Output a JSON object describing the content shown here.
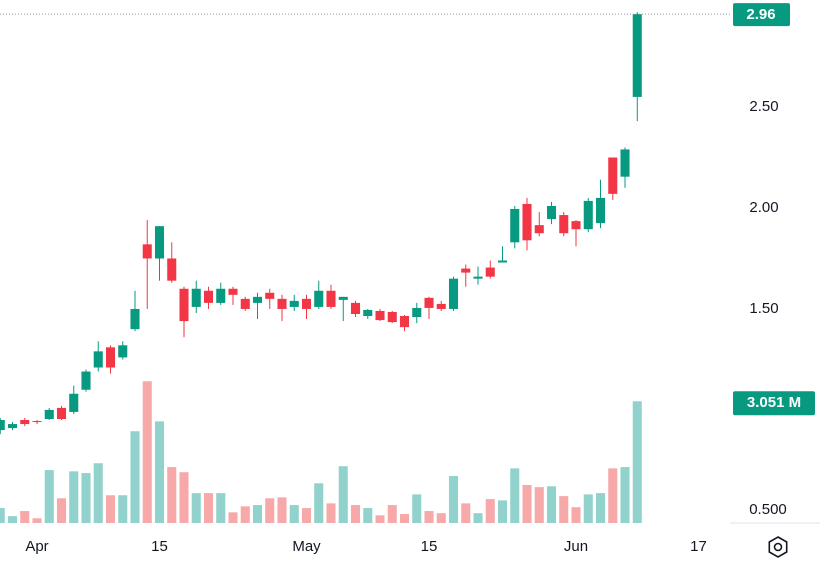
{
  "chart_data": {
    "type": "candlestick",
    "open": [
      0.9,
      0.91,
      0.95,
      0.945,
      0.955,
      1.01,
      0.99,
      1.1,
      1.21,
      1.31,
      1.26,
      1.4,
      1.82,
      1.75,
      1.75,
      1.6,
      1.51,
      1.59,
      1.53,
      1.6,
      1.55,
      1.53,
      1.58,
      1.55,
      1.51,
      1.55,
      1.51,
      1.59,
      1.545,
      1.53,
      1.465,
      1.49,
      1.485,
      1.465,
      1.46,
      1.555,
      1.525,
      1.5,
      1.7,
      1.65,
      1.705,
      1.73,
      1.83,
      2.02,
      1.915,
      1.945,
      1.965,
      1.935,
      1.895,
      1.925,
      2.25,
      2.155,
      2.55
    ],
    "high": [
      0.96,
      0.94,
      0.96,
      0.95,
      1.01,
      1.02,
      1.12,
      1.2,
      1.34,
      1.32,
      1.34,
      1.59,
      1.94,
      1.91,
      1.83,
      1.61,
      1.64,
      1.61,
      1.63,
      1.61,
      1.56,
      1.58,
      1.6,
      1.57,
      1.57,
      1.57,
      1.64,
      1.62,
      1.56,
      1.54,
      1.5,
      1.5,
      1.49,
      1.47,
      1.53,
      1.56,
      1.54,
      1.66,
      1.72,
      1.71,
      1.74,
      1.81,
      2.01,
      2.05,
      1.98,
      2.03,
      1.98,
      1.94,
      2.05,
      2.14,
      2.25,
      2.3,
      2.97
    ],
    "low": [
      0.88,
      0.9,
      0.92,
      0.93,
      0.95,
      0.95,
      0.98,
      1.09,
      1.19,
      1.18,
      1.25,
      1.39,
      1.5,
      1.64,
      1.63,
      1.36,
      1.48,
      1.5,
      1.52,
      1.52,
      1.49,
      1.45,
      1.5,
      1.44,
      1.49,
      1.45,
      1.5,
      1.5,
      1.44,
      1.46,
      1.45,
      1.44,
      1.43,
      1.39,
      1.43,
      1.45,
      1.49,
      1.49,
      1.61,
      1.62,
      1.65,
      1.73,
      1.8,
      1.79,
      1.86,
      1.92,
      1.86,
      1.81,
      1.88,
      1.9,
      2.04,
      2.1,
      2.43
    ],
    "close": [
      0.95,
      0.93,
      0.93,
      0.94,
      1.0,
      0.955,
      1.08,
      1.19,
      1.29,
      1.21,
      1.32,
      1.5,
      1.75,
      1.91,
      1.64,
      1.44,
      1.6,
      1.53,
      1.6,
      1.57,
      1.5,
      1.56,
      1.55,
      1.5,
      1.54,
      1.5,
      1.59,
      1.51,
      1.56,
      1.475,
      1.495,
      1.445,
      1.435,
      1.41,
      1.505,
      1.505,
      1.5,
      1.65,
      1.68,
      1.66,
      1.66,
      1.74,
      1.995,
      1.84,
      1.875,
      2.01,
      1.875,
      1.895,
      2.035,
      2.05,
      2.07,
      2.29,
      2.96
    ],
    "volume": [
      0.55,
      0.36,
      0.48,
      0.31,
      1.44,
      0.78,
      1.41,
      1.37,
      1.6,
      0.85,
      0.85,
      2.35,
      3.52,
      2.58,
      1.51,
      1.39,
      0.9,
      0.9,
      0.9,
      0.45,
      0.59,
      0.62,
      0.78,
      0.8,
      0.62,
      0.55,
      1.13,
      0.66,
      1.53,
      0.62,
      0.55,
      0.38,
      0.62,
      0.41,
      0.87,
      0.48,
      0.43,
      1.3,
      0.66,
      0.43,
      0.76,
      0.73,
      1.48,
      1.09,
      1.04,
      1.06,
      0.83,
      0.57,
      0.87,
      0.9,
      1.48,
      1.51,
      3.051
    ],
    "volume_last_label": "3.051 M",
    "up_color": "#089981",
    "down_color": "#f23645",
    "volume_up_color": "#92d2cc",
    "volume_down_color": "#f7a9a9",
    "xlim": [
      -0.02,
      59.57
    ],
    "xticks": [
      {
        "value": 3,
        "label": "Apr"
      },
      {
        "value": 13,
        "label": "15"
      },
      {
        "value": 25,
        "label": "May"
      },
      {
        "value": 35,
        "label": "15"
      },
      {
        "value": 47,
        "label": "Jun"
      },
      {
        "value": 57,
        "label": "17"
      }
    ],
    "ylim": [
      0.44,
      3.03
    ],
    "yticks": [
      {
        "value": 1.5,
        "label": "1.50"
      },
      {
        "value": 2.0,
        "label": "2.00"
      },
      {
        "value": 2.5,
        "label": "2.50"
      }
    ],
    "y2lim": [
      0.2,
      12.45
    ],
    "y2ticks": [
      {
        "value": 0.5,
        "label": "0.500"
      }
    ],
    "grid": false
  }
}
